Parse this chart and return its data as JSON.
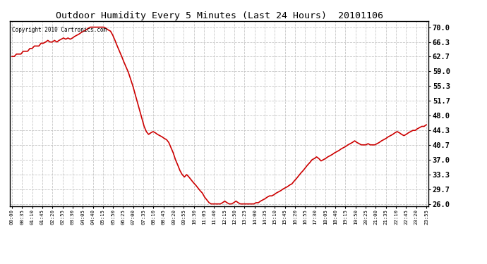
{
  "title": "Outdoor Humidity Every 5 Minutes (Last 24 Hours)  20101106",
  "copyright_text": "Copyright 2010 Cartronics.com",
  "line_color": "#cc0000",
  "bg_color": "#ffffff",
  "grid_color": "#c0c0c0",
  "yticks": [
    26.0,
    29.7,
    33.3,
    37.0,
    40.7,
    44.3,
    48.0,
    51.7,
    55.3,
    59.0,
    62.7,
    66.3,
    70.0
  ],
  "ylim": [
    25.5,
    71.5
  ],
  "xtick_labels": [
    "00:00",
    "00:35",
    "01:10",
    "01:45",
    "02:20",
    "02:55",
    "03:30",
    "04:05",
    "04:40",
    "05:15",
    "05:50",
    "06:25",
    "07:00",
    "07:35",
    "08:10",
    "08:45",
    "09:20",
    "09:55",
    "10:30",
    "11:05",
    "11:40",
    "12:15",
    "12:50",
    "13:25",
    "14:00",
    "14:35",
    "15:10",
    "15:45",
    "16:20",
    "16:55",
    "17:30",
    "18:05",
    "18:40",
    "19:15",
    "19:50",
    "20:25",
    "21:00",
    "21:35",
    "22:10",
    "22:45",
    "23:20",
    "23:55"
  ],
  "humidity_data": [
    62.7,
    62.7,
    63.3,
    63.3,
    63.3,
    64.0,
    64.0,
    64.0,
    64.7,
    64.7,
    65.3,
    65.3,
    65.3,
    66.0,
    66.0,
    66.3,
    66.7,
    66.3,
    66.3,
    66.7,
    66.3,
    66.7,
    67.0,
    67.3,
    67.0,
    67.3,
    67.0,
    67.3,
    67.7,
    68.0,
    68.3,
    68.7,
    69.0,
    69.3,
    69.7,
    70.0,
    70.0,
    70.0,
    70.0,
    70.0,
    70.0,
    70.0,
    69.7,
    69.3,
    69.0,
    68.0,
    66.7,
    65.3,
    64.0,
    62.7,
    61.3,
    60.0,
    58.7,
    57.0,
    55.3,
    53.3,
    51.3,
    49.3,
    47.3,
    45.3,
    44.0,
    43.3,
    43.7,
    44.0,
    43.7,
    43.3,
    43.0,
    42.7,
    42.3,
    42.0,
    41.3,
    40.0,
    38.7,
    37.0,
    35.7,
    34.3,
    33.3,
    32.7,
    33.3,
    32.7,
    32.0,
    31.3,
    30.7,
    30.0,
    29.3,
    28.7,
    27.7,
    27.0,
    26.3,
    26.0,
    26.0,
    26.0,
    26.0,
    26.0,
    26.3,
    26.7,
    26.3,
    26.0,
    26.0,
    26.3,
    26.7,
    26.3,
    26.0,
    26.0,
    26.0,
    26.0,
    26.0,
    26.0,
    26.0,
    26.3,
    26.3,
    26.7,
    27.0,
    27.3,
    27.7,
    28.0,
    28.0,
    28.3,
    28.7,
    29.0,
    29.3,
    29.7,
    30.0,
    30.3,
    30.7,
    31.0,
    31.7,
    32.3,
    33.0,
    33.7,
    34.3,
    35.0,
    35.7,
    36.3,
    37.0,
    37.3,
    37.7,
    37.3,
    36.7,
    37.0,
    37.3,
    37.7,
    38.0,
    38.3,
    38.7,
    39.0,
    39.3,
    39.7,
    40.0,
    40.3,
    40.7,
    41.0,
    41.3,
    41.7,
    41.3,
    41.0,
    40.7,
    40.7,
    40.7,
    41.0,
    40.7,
    40.7,
    40.7,
    41.0,
    41.3,
    41.7,
    42.0,
    42.3,
    42.7,
    43.0,
    43.3,
    43.7,
    44.0,
    43.7,
    43.3,
    43.0,
    43.3,
    43.7,
    44.0,
    44.3,
    44.3,
    44.7,
    45.0,
    45.3,
    45.3,
    45.7
  ]
}
